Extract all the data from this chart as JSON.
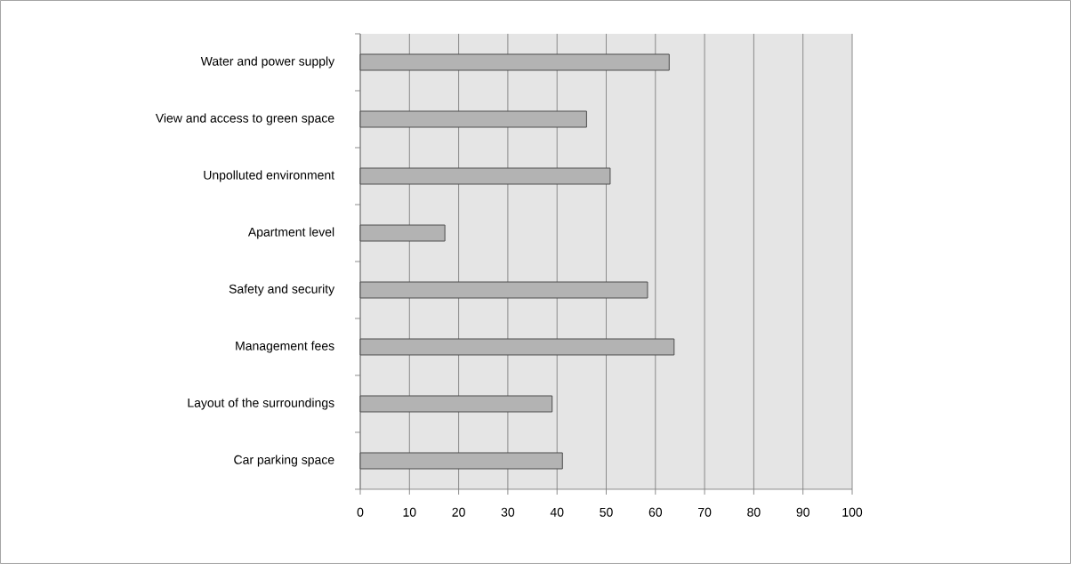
{
  "chart_data": {
    "type": "bar",
    "orientation": "horizontal",
    "categories": [
      "Water and power supply",
      "View and access to green space",
      "Unpolluted environment",
      "Apartment level",
      "Safety and security",
      "Management fees",
      "Layout of the surroundings",
      "Car parking space"
    ],
    "values": [
      62.8,
      46.0,
      50.8,
      17.2,
      58.4,
      63.8,
      39.0,
      41.1
    ],
    "color": "#b3b3b3",
    "xlim": [
      0,
      100
    ],
    "xticks": [
      0,
      10,
      20,
      30,
      40,
      50,
      60,
      70,
      80,
      90,
      100
    ],
    "grid": "x"
  }
}
